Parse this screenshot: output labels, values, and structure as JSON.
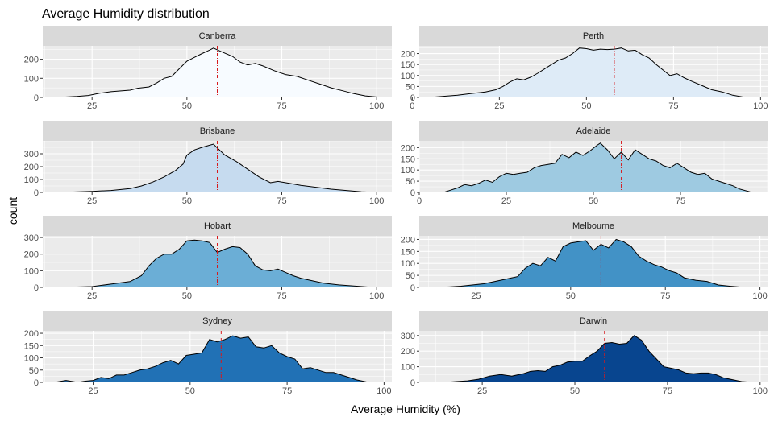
{
  "chart_data": {
    "type": "area",
    "title": "Average Humidity distribution",
    "xlabel": "Average Humidity (%)",
    "ylabel": "count",
    "mean_line_color": "#d7191c",
    "panel_background": "#ebebeb",
    "strip_background": "#d9d9d9",
    "grid": true,
    "x_ticks": [
      25,
      50,
      75,
      100
    ],
    "panels": [
      {
        "name": "Canberra",
        "fill": "#f7fbff",
        "xlim": [
          12,
          104
        ],
        "ylim": [
          0,
          270
        ],
        "y_ticks": [
          0,
          100,
          200
        ],
        "x_ticks": [
          25,
          50,
          75,
          100
        ],
        "mean": 58,
        "x": [
          15,
          18,
          21,
          24,
          27,
          30,
          33,
          35,
          37,
          40,
          42,
          44,
          46,
          48,
          50,
          52,
          54,
          56,
          57,
          59,
          62,
          64,
          66,
          68,
          70,
          73,
          76,
          79,
          82,
          85,
          88,
          91,
          94,
          97,
          100
        ],
        "y": [
          0,
          2,
          5,
          10,
          22,
          30,
          35,
          38,
          48,
          55,
          75,
          100,
          110,
          150,
          190,
          210,
          230,
          248,
          258,
          240,
          215,
          185,
          170,
          178,
          165,
          140,
          120,
          110,
          90,
          70,
          50,
          35,
          20,
          8,
          2
        ]
      },
      {
        "name": "Perth",
        "fill": "#deebf7",
        "xlim": [
          2,
          102
        ],
        "ylim": [
          0,
          235
        ],
        "y_ticks": [
          0,
          50,
          100,
          150,
          200
        ],
        "x_ticks": [
          0,
          25,
          50,
          75,
          100
        ],
        "mean": 58,
        "x": [
          5,
          9,
          13,
          17,
          21,
          24,
          26,
          28,
          30,
          32,
          34,
          36,
          38,
          40,
          42,
          44,
          46,
          48,
          50,
          52,
          54,
          56,
          58,
          60,
          62,
          64,
          66,
          68,
          70,
          72,
          74,
          76,
          78,
          80,
          83,
          86,
          89,
          92,
          95
        ],
        "y": [
          0,
          5,
          10,
          18,
          25,
          35,
          50,
          70,
          85,
          80,
          92,
          110,
          130,
          150,
          170,
          180,
          200,
          225,
          222,
          215,
          220,
          218,
          220,
          225,
          212,
          215,
          195,
          180,
          150,
          125,
          100,
          108,
          90,
          75,
          55,
          35,
          25,
          10,
          2
        ]
      },
      {
        "name": "Brisbane",
        "fill": "#c6dbef",
        "xlim": [
          12,
          104
        ],
        "ylim": [
          0,
          400
        ],
        "y_ticks": [
          0,
          100,
          200,
          300
        ],
        "x_ticks": [
          25,
          50,
          75,
          100
        ],
        "mean": 58,
        "x": [
          15,
          20,
          25,
          30,
          35,
          38,
          41,
          44,
          47,
          49,
          50,
          52,
          54,
          57,
          58,
          60,
          63,
          66,
          69,
          72,
          74,
          77,
          80,
          84,
          88,
          92,
          96,
          100
        ],
        "y": [
          0,
          3,
          8,
          15,
          30,
          50,
          80,
          120,
          170,
          220,
          290,
          330,
          350,
          375,
          345,
          290,
          240,
          180,
          120,
          75,
          85,
          70,
          55,
          40,
          25,
          15,
          5,
          0
        ]
      },
      {
        "name": "Adelaide",
        "fill": "#9ecae1",
        "xlim": [
          0,
          100
        ],
        "ylim": [
          0,
          230
        ],
        "y_ticks": [
          0,
          50,
          100,
          150,
          200
        ],
        "x_ticks": [
          0,
          25,
          50,
          75
        ],
        "mean": 58,
        "x": [
          7,
          9,
          11,
          13,
          15,
          17,
          19,
          21,
          23,
          25,
          27,
          29,
          31,
          33,
          35,
          37,
          39,
          41,
          43,
          45,
          47,
          49,
          51,
          52,
          54,
          56,
          58,
          60,
          62,
          64,
          66,
          68,
          70,
          72,
          74,
          76,
          78,
          80,
          82,
          84,
          86,
          88,
          90,
          92,
          95
        ],
        "y": [
          0,
          10,
          20,
          35,
          30,
          40,
          55,
          45,
          70,
          85,
          80,
          85,
          90,
          110,
          120,
          125,
          130,
          170,
          155,
          180,
          165,
          185,
          210,
          220,
          190,
          150,
          180,
          145,
          190,
          170,
          150,
          140,
          120,
          110,
          130,
          110,
          90,
          80,
          85,
          60,
          50,
          40,
          30,
          15,
          2
        ]
      },
      {
        "name": "Hobart",
        "fill": "#6baed6",
        "xlim": [
          12,
          104
        ],
        "ylim": [
          0,
          310
        ],
        "y_ticks": [
          0,
          100,
          200,
          300
        ],
        "x_ticks": [
          25,
          50,
          75,
          100
        ],
        "mean": 58,
        "x": [
          15,
          20,
          25,
          30,
          35,
          38,
          40,
          42,
          44,
          46,
          48,
          50,
          52,
          54,
          56,
          58,
          60,
          62,
          64,
          66,
          68,
          70,
          72,
          74,
          76,
          78,
          80,
          83,
          86,
          90,
          94,
          98,
          100
        ],
        "y": [
          0,
          2,
          5,
          20,
          35,
          70,
          130,
          175,
          200,
          200,
          230,
          280,
          285,
          280,
          270,
          210,
          230,
          245,
          240,
          200,
          130,
          105,
          100,
          110,
          90,
          70,
          55,
          40,
          25,
          15,
          8,
          2,
          0
        ]
      },
      {
        "name": "Melbourne",
        "fill": "#4292c6",
        "xlim": [
          10,
          102
        ],
        "ylim": [
          0,
          215
        ],
        "y_ticks": [
          0,
          50,
          100,
          150,
          200
        ],
        "x_ticks": [
          25,
          50,
          75,
          100
        ],
        "mean": 58,
        "x": [
          15,
          18,
          21,
          24,
          27,
          30,
          33,
          36,
          38,
          40,
          42,
          44,
          46,
          48,
          50,
          52,
          54,
          56,
          58,
          60,
          62,
          64,
          66,
          68,
          70,
          72,
          74,
          76,
          78,
          80,
          83,
          86,
          89,
          92,
          96
        ],
        "y": [
          0,
          2,
          5,
          10,
          15,
          25,
          35,
          45,
          80,
          100,
          90,
          125,
          110,
          170,
          185,
          190,
          195,
          155,
          180,
          165,
          200,
          190,
          170,
          130,
          110,
          95,
          85,
          70,
          60,
          40,
          30,
          25,
          10,
          5,
          0
        ]
      },
      {
        "name": "Sydney",
        "fill": "#2171b5",
        "xlim": [
          12,
          102
        ],
        "ylim": [
          0,
          210
        ],
        "y_ticks": [
          0,
          50,
          100,
          150,
          200
        ],
        "x_ticks": [
          25,
          50,
          75,
          100
        ],
        "mean": 58,
        "x": [
          15,
          18,
          21,
          23,
          25,
          27,
          29,
          31,
          33,
          35,
          37,
          39,
          41,
          43,
          45,
          47,
          49,
          51,
          53,
          55,
          57,
          59,
          61,
          63,
          65,
          67,
          69,
          71,
          73,
          75,
          77,
          79,
          81,
          83,
          85,
          87,
          89,
          91,
          93,
          96
        ],
        "y": [
          0,
          8,
          0,
          5,
          8,
          20,
          15,
          30,
          30,
          40,
          50,
          55,
          65,
          80,
          90,
          75,
          110,
          115,
          120,
          175,
          165,
          175,
          190,
          180,
          185,
          145,
          140,
          150,
          120,
          105,
          95,
          55,
          60,
          50,
          40,
          40,
          30,
          20,
          10,
          0
        ]
      },
      {
        "name": "Darwin",
        "fill": "#08458f",
        "xlim": [
          8,
          102
        ],
        "ylim": [
          0,
          330
        ],
        "y_ticks": [
          0,
          100,
          200,
          300
        ],
        "x_ticks": [
          25,
          50,
          75,
          100
        ],
        "mean": 58,
        "x": [
          15,
          18,
          21,
          24,
          27,
          30,
          33,
          36,
          38,
          40,
          42,
          44,
          46,
          48,
          50,
          52,
          54,
          56,
          58,
          60,
          62,
          64,
          66,
          68,
          70,
          72,
          74,
          76,
          78,
          80,
          82,
          84,
          86,
          88,
          90,
          92,
          95,
          98
        ],
        "y": [
          0,
          5,
          10,
          20,
          40,
          50,
          40,
          55,
          70,
          75,
          70,
          100,
          110,
          130,
          135,
          135,
          170,
          200,
          250,
          255,
          245,
          250,
          300,
          270,
          200,
          150,
          100,
          90,
          80,
          60,
          55,
          60,
          60,
          50,
          30,
          20,
          5,
          0
        ]
      }
    ]
  }
}
